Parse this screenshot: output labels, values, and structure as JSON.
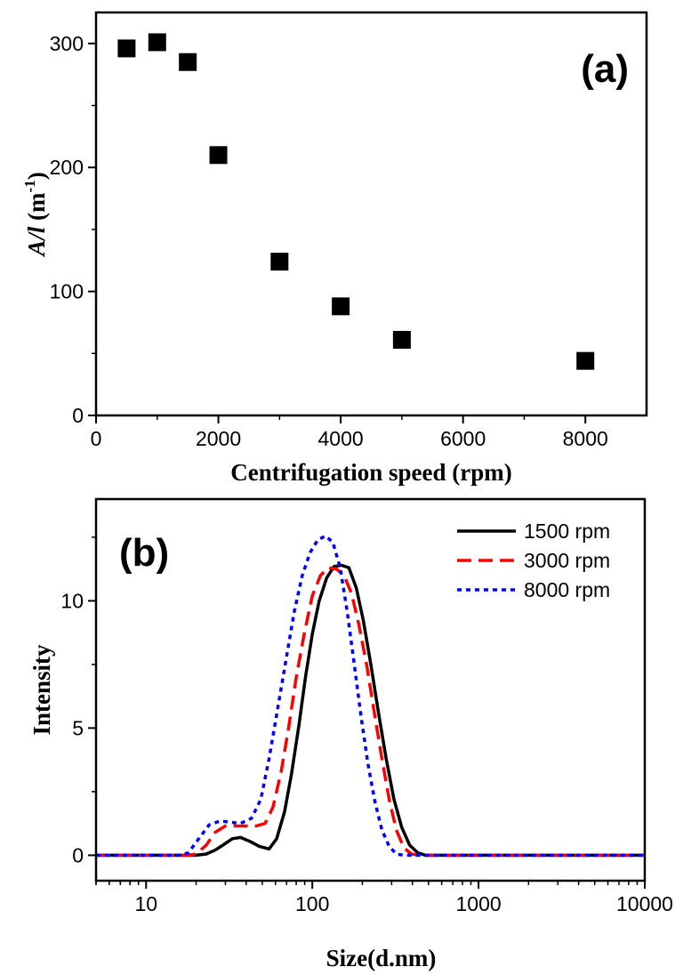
{
  "chart_data": [
    {
      "type": "scatter",
      "panel_label": "(a)",
      "xlabel": "Centrifugation speed (rpm)",
      "ylabel": {
        "italic": "A/l",
        "rest": " (m",
        "sup": "-1",
        "close": ")"
      },
      "xlim": [
        0,
        9000
      ],
      "ylim": [
        0,
        325
      ],
      "xticks": [
        0,
        2000,
        4000,
        6000,
        8000
      ],
      "yticks": [
        0,
        100,
        200,
        300
      ],
      "x": [
        500,
        1000,
        1500,
        2000,
        3000,
        4000,
        5000,
        8000
      ],
      "y": [
        296,
        301,
        285,
        210,
        124,
        88,
        61,
        44
      ],
      "marker": "square",
      "color": "#000000"
    },
    {
      "type": "line",
      "panel_label": "(b)",
      "xlabel": "Size(d.nm)",
      "ylabel": "Intensity",
      "xscale": "log",
      "xlim": [
        5,
        10000
      ],
      "ylim": [
        -1,
        14
      ],
      "xticks": [
        10,
        100,
        1000,
        10000
      ],
      "yticks": [
        0,
        5,
        10
      ],
      "legend_position": "top-right",
      "series": [
        {
          "name": "1500 rpm",
          "color": "#000000",
          "dash": "solid",
          "x": [
            5,
            20,
            23,
            26,
            29,
            33,
            37,
            42,
            48,
            55,
            61,
            68,
            75,
            83,
            91,
            100,
            110,
            122,
            135,
            150,
            166,
            184,
            203,
            225,
            250,
            278,
            310,
            345,
            385,
            430,
            480,
            540,
            600,
            680,
            760,
            850,
            1000,
            10000
          ],
          "y": [
            0,
            0,
            0.05,
            0.2,
            0.4,
            0.65,
            0.7,
            0.55,
            0.35,
            0.25,
            0.65,
            1.7,
            3.2,
            5.1,
            7.0,
            8.7,
            10.0,
            10.9,
            11.35,
            11.4,
            11.3,
            10.5,
            9.2,
            7.5,
            5.6,
            3.8,
            2.2,
            1.1,
            0.4,
            0.1,
            0,
            0,
            0,
            0,
            0,
            0,
            0,
            0
          ]
        },
        {
          "name": "3000 rpm",
          "color": "#ff0000",
          "dash": "dashed",
          "x": [
            5,
            18,
            20,
            23,
            26,
            30,
            35,
            40,
            46,
            52,
            58,
            65,
            72,
            80,
            90,
            100,
            112,
            125,
            140,
            155,
            172,
            190,
            212,
            236,
            262,
            290,
            320,
            355,
            395,
            440,
            490,
            545,
            600,
            10000
          ],
          "y": [
            0,
            0,
            0.05,
            0.4,
            0.9,
            1.15,
            1.15,
            1.15,
            1.15,
            1.25,
            1.9,
            3.3,
            5.0,
            7.0,
            8.8,
            10.2,
            11.0,
            11.3,
            11.25,
            11.0,
            10.3,
            9.1,
            7.5,
            5.6,
            3.8,
            2.2,
            1.0,
            0.3,
            0.05,
            0,
            0,
            0,
            0,
            0
          ]
        },
        {
          "name": "8000 rpm",
          "color": "#0000ff",
          "dash": "dotted",
          "x": [
            5,
            16,
            18,
            21,
            24,
            28,
            32,
            37,
            43,
            49,
            55,
            62,
            70,
            78,
            87,
            97,
            108,
            120,
            133,
            147,
            162,
            178,
            196,
            216,
            238,
            262,
            290,
            320,
            355,
            395,
            440,
            10000
          ],
          "y": [
            0,
            0,
            0.1,
            0.7,
            1.2,
            1.35,
            1.3,
            1.25,
            1.45,
            2.2,
            3.8,
            5.8,
            7.8,
            9.6,
            11.0,
            11.9,
            12.4,
            12.55,
            12.3,
            11.3,
            9.6,
            7.6,
            5.5,
            3.6,
            2.1,
            1.0,
            0.35,
            0.05,
            0,
            0,
            0,
            0
          ]
        }
      ]
    }
  ]
}
